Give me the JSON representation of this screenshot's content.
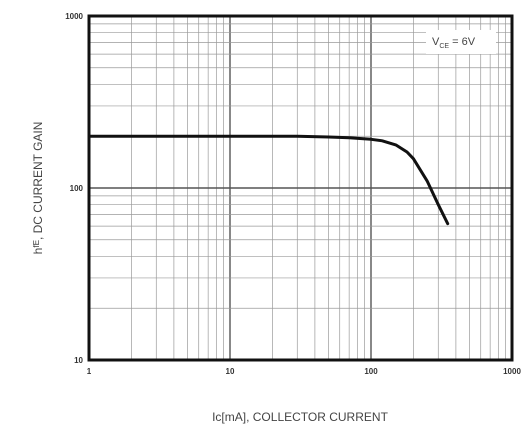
{
  "chart_data": {
    "type": "line",
    "xlabel": "Iᴄ[mA], COLLECTOR CURRENT",
    "ylabel": "hᶠᴱ, DC CURRENT GAIN",
    "x_scale": "log",
    "y_scale": "log",
    "xlim": [
      1,
      1000
    ],
    "ylim": [
      10,
      1000
    ],
    "x_ticks": [
      "1",
      "10",
      "100",
      "1000"
    ],
    "y_ticks": [
      "10",
      "100",
      "1000"
    ],
    "grid": true,
    "annotation": {
      "main": "V",
      "sub": "CE",
      "rest": " = 6V"
    },
    "series": [
      {
        "x": [
          1,
          2,
          5,
          10,
          20,
          30,
          50,
          70,
          100,
          120,
          150,
          180,
          200,
          250,
          300,
          350
        ],
        "y": [
          200,
          200,
          200,
          200,
          200,
          200,
          198,
          196,
          192,
          188,
          178,
          162,
          148,
          110,
          80,
          62
        ]
      }
    ]
  }
}
